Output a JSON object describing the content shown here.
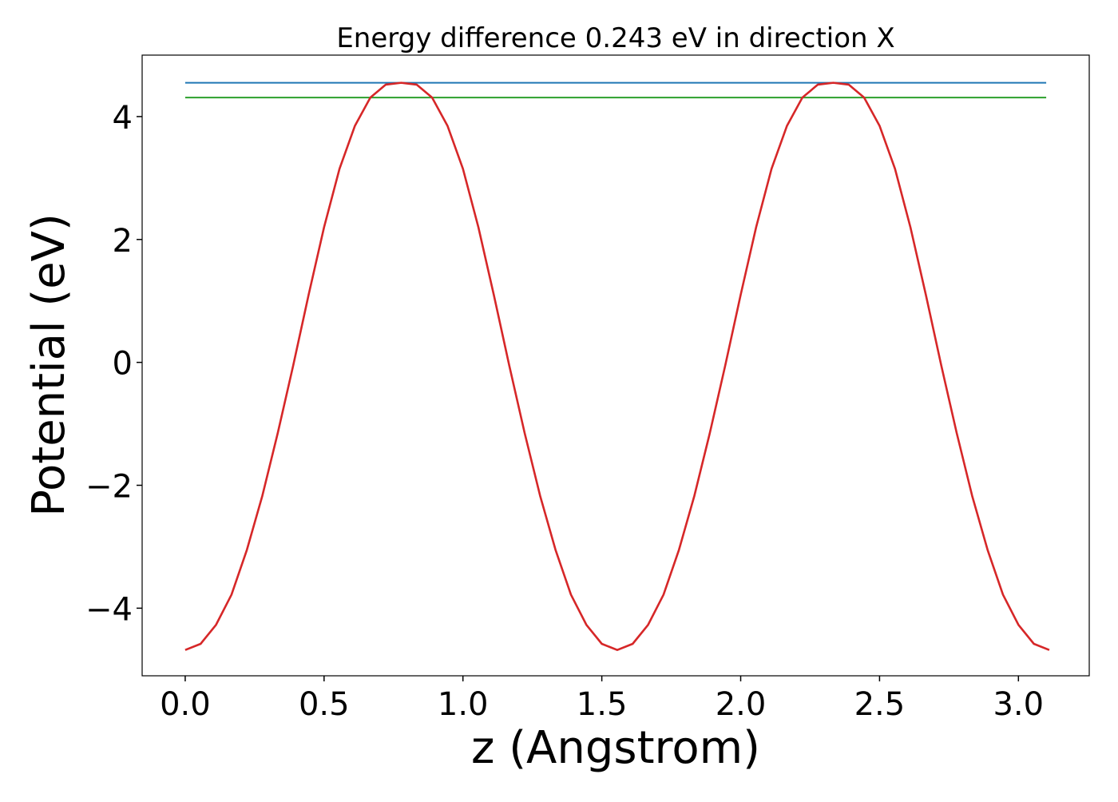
{
  "chart_data": {
    "type": "line",
    "title": "Energy difference 0.243 eV in direction X",
    "xlabel": "z (Angstrom)",
    "ylabel": "Potential (eV)",
    "xlim": [
      -0.155,
      3.255
    ],
    "ylim": [
      -5.1,
      5.0
    ],
    "grid": false,
    "xticks": [
      0.0,
      0.5,
      1.0,
      1.5,
      2.0,
      2.5,
      3.0
    ],
    "xtick_labels": [
      "0.0",
      "0.5",
      "1.0",
      "1.5",
      "2.0",
      "2.5",
      "3.0"
    ],
    "yticks": [
      4,
      2,
      0,
      -2,
      -4
    ],
    "ytick_labels": [
      "4",
      "2",
      "0",
      "−2",
      "−4"
    ],
    "series": [
      {
        "role": "max-line",
        "color": "#1f77b4",
        "x": [
          0.0,
          3.1
        ],
        "y": [
          4.55,
          4.55
        ]
      },
      {
        "role": "threshold-line",
        "color": "#2ca02c",
        "x": [
          0.0,
          3.1
        ],
        "y": [
          4.31,
          4.31
        ]
      },
      {
        "role": "potential",
        "color": "#d62728",
        "x": [
          0.0,
          0.0556,
          0.1111,
          0.1667,
          0.2222,
          0.2778,
          0.3333,
          0.3889,
          0.4444,
          0.5,
          0.5556,
          0.6111,
          0.6667,
          0.7222,
          0.7778,
          0.8333,
          0.8889,
          0.9444,
          1.0,
          1.0556,
          1.1111,
          1.1667,
          1.2222,
          1.2778,
          1.3333,
          1.3889,
          1.4444,
          1.5,
          1.5556,
          1.6111,
          1.6667,
          1.7222,
          1.7778,
          1.8333,
          1.8889,
          1.9444,
          2.0,
          2.0556,
          2.1111,
          2.1667,
          2.2222,
          2.2778,
          2.3333,
          2.3889,
          2.4444,
          2.5,
          2.5556,
          2.6111,
          2.6667,
          2.7222,
          2.7778,
          2.8333,
          2.8889,
          2.9444,
          3.0,
          3.0556,
          3.1111
        ],
        "y": [
          -4.68,
          -4.58,
          -4.27,
          -3.78,
          -3.05,
          -2.17,
          -1.15,
          -0.05,
          1.1,
          2.2,
          3.15,
          3.85,
          4.31,
          4.52,
          4.55,
          4.52,
          4.31,
          3.85,
          3.15,
          2.2,
          1.1,
          -0.05,
          -1.15,
          -2.17,
          -3.05,
          -3.78,
          -4.27,
          -4.58,
          -4.68,
          -4.58,
          -4.27,
          -3.78,
          -3.05,
          -2.17,
          -1.15,
          -0.05,
          1.1,
          2.2,
          3.15,
          3.85,
          4.31,
          4.52,
          4.55,
          4.52,
          4.31,
          3.85,
          3.15,
          2.2,
          1.1,
          -0.05,
          -1.15,
          -2.17,
          -3.05,
          -3.78,
          -4.27,
          -4.58,
          -4.68
        ]
      }
    ]
  }
}
